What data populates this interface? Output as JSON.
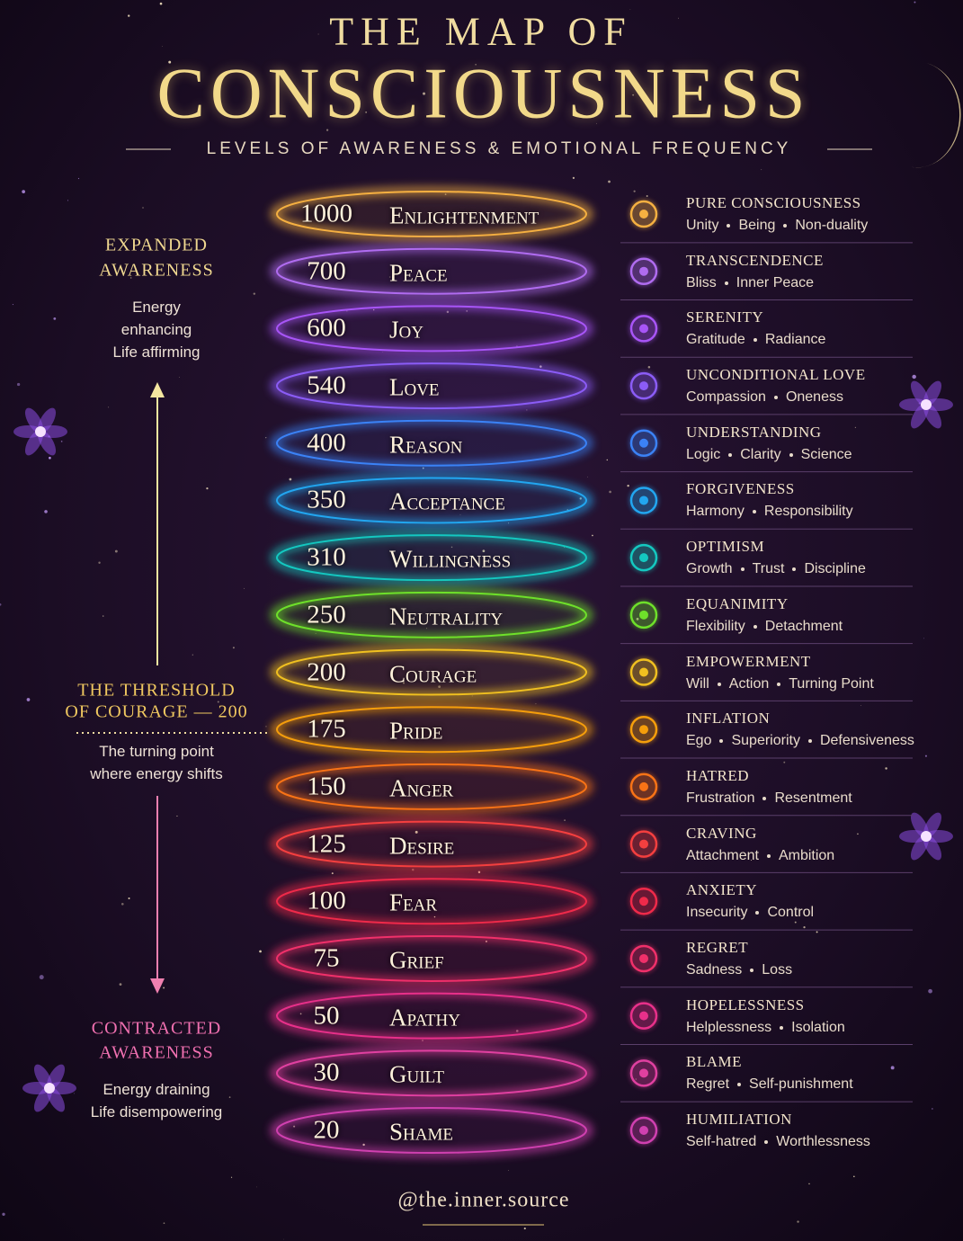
{
  "header": {
    "title_top": "THE MAP OF",
    "title_main": "CONSCIOUSNESS",
    "subtitle": "LEVELS OF AWARENESS & EMOTIONAL FREQUENCY"
  },
  "side": {
    "expanded": {
      "title": [
        "EXPANDED",
        "AWARENESS"
      ],
      "text": [
        "Energy",
        "enhancing",
        "Life affirming"
      ]
    },
    "threshold": {
      "title": [
        "THE THRESHOLD",
        "OF COURAGE — 200"
      ],
      "text": [
        "The turning point",
        "where energy shifts"
      ]
    },
    "contracted": {
      "title": [
        "CONTRACTED",
        "AWARENESS"
      ],
      "text": [
        "Energy draining",
        "Life disempowering"
      ]
    }
  },
  "levels": [
    {
      "score": 1000,
      "name": "Enlightenment",
      "state": "PURE CONSCIOUSNESS",
      "keywords": [
        "Unity",
        "Being",
        "Non-duality"
      ],
      "color": "#f5b041"
    },
    {
      "score": 700,
      "name": "Peace",
      "state": "TRANSCENDENCE",
      "keywords": [
        "Bliss",
        "Inner Peace"
      ],
      "color": "#b06cf0"
    },
    {
      "score": 600,
      "name": "Joy",
      "state": "SERENITY",
      "keywords": [
        "Gratitude",
        "Radiance"
      ],
      "color": "#a855f7"
    },
    {
      "score": 540,
      "name": "Love",
      "state": "UNCONDITIONAL LOVE",
      "keywords": [
        "Compassion",
        "Oneness"
      ],
      "color": "#8b5cf6"
    },
    {
      "score": 400,
      "name": "Reason",
      "state": "UNDERSTANDING",
      "keywords": [
        "Logic",
        "Clarity",
        "Science"
      ],
      "color": "#3b82f6"
    },
    {
      "score": 350,
      "name": "Acceptance",
      "state": "FORGIVENESS",
      "keywords": [
        "Harmony",
        "Responsibility"
      ],
      "color": "#22a6f0"
    },
    {
      "score": 310,
      "name": "Willingness",
      "state": "OPTIMISM",
      "keywords": [
        "Growth",
        "Trust",
        "Discipline"
      ],
      "color": "#14c8c0"
    },
    {
      "score": 250,
      "name": "Neutrality",
      "state": "EQUANIMITY",
      "keywords": [
        "Flexibility",
        "Detachment"
      ],
      "color": "#6ee02a"
    },
    {
      "score": 200,
      "name": "Courage",
      "state": "EMPOWERMENT",
      "keywords": [
        "Will",
        "Action",
        "Turning Point"
      ],
      "color": "#f0c020"
    },
    {
      "score": 175,
      "name": "Pride",
      "state": "INFLATION",
      "keywords": [
        "Ego",
        "Superiority",
        "Defensiveness"
      ],
      "color": "#f59e0b"
    },
    {
      "score": 150,
      "name": "Anger",
      "state": "HATRED",
      "keywords": [
        "Frustration",
        "Resentment"
      ],
      "color": "#f97316"
    },
    {
      "score": 125,
      "name": "Desire",
      "state": "CRAVING",
      "keywords": [
        "Attachment",
        "Ambition"
      ],
      "color": "#f43f3f"
    },
    {
      "score": 100,
      "name": "Fear",
      "state": "ANXIETY",
      "keywords": [
        "Insecurity",
        "Control"
      ],
      "color": "#ef2a4a"
    },
    {
      "score": 75,
      "name": "Grief",
      "state": "REGRET",
      "keywords": [
        "Sadness",
        "Loss"
      ],
      "color": "#f0306a"
    },
    {
      "score": 50,
      "name": "Apathy",
      "state": "HOPELESSNESS",
      "keywords": [
        "Helplessness",
        "Isolation"
      ],
      "color": "#e8308a"
    },
    {
      "score": 30,
      "name": "Guilt",
      "state": "BLAME",
      "keywords": [
        "Regret",
        "Self-punishment"
      ],
      "color": "#e040a0"
    },
    {
      "score": 20,
      "name": "Shame",
      "state": "HUMILIATION",
      "keywords": [
        "Self-hatred",
        "Worthlessness"
      ],
      "color": "#d040b0"
    }
  ],
  "footer": {
    "handle": "@the.inner.source"
  }
}
